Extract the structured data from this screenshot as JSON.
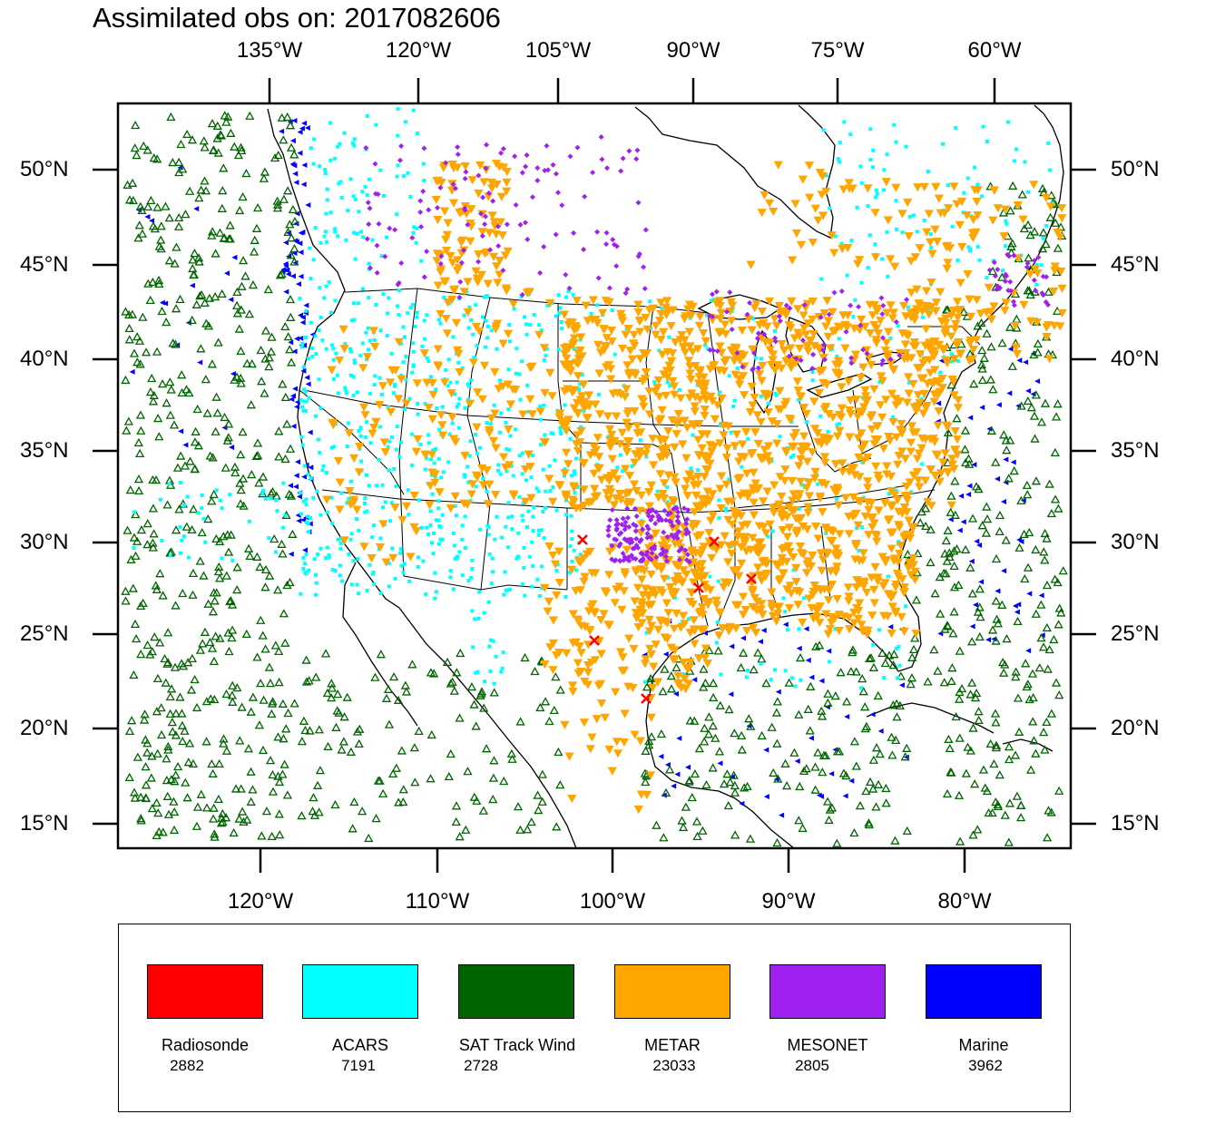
{
  "title": "Assimilated obs on: 2017082606",
  "axes": {
    "top_lon_labels": [
      "135°W",
      "120°W",
      "105°W",
      "90°W",
      "75°W",
      "60°W"
    ],
    "bottom_lon_labels": [
      "120°W",
      "110°W",
      "100°W",
      "90°W",
      "80°W"
    ],
    "lat_labels": [
      "50°N",
      "45°N",
      "40°N",
      "35°N",
      "30°N",
      "25°N",
      "20°N",
      "15°N"
    ]
  },
  "legend": [
    {
      "name": "Radiosonde",
      "count": "2882",
      "color": "#ff0000"
    },
    {
      "name": "ACARS",
      "count": "7191",
      "color": "#00ffff"
    },
    {
      "name": "SAT Track Wind",
      "count": "2728",
      "color": "#006400"
    },
    {
      "name": "METAR",
      "count": "23033",
      "color": "#ffa500"
    },
    {
      "name": "MESONET",
      "count": "2805",
      "color": "#a020f0"
    },
    {
      "name": "Marine",
      "count": "3962",
      "color": "#0000ff"
    }
  ],
  "colors": {
    "radiosonde": "#ff0000",
    "acars": "#00ffff",
    "satwind": "#006400",
    "metar": "#ffa500",
    "mesonet": "#a020f0",
    "marine": "#0000ff"
  }
}
